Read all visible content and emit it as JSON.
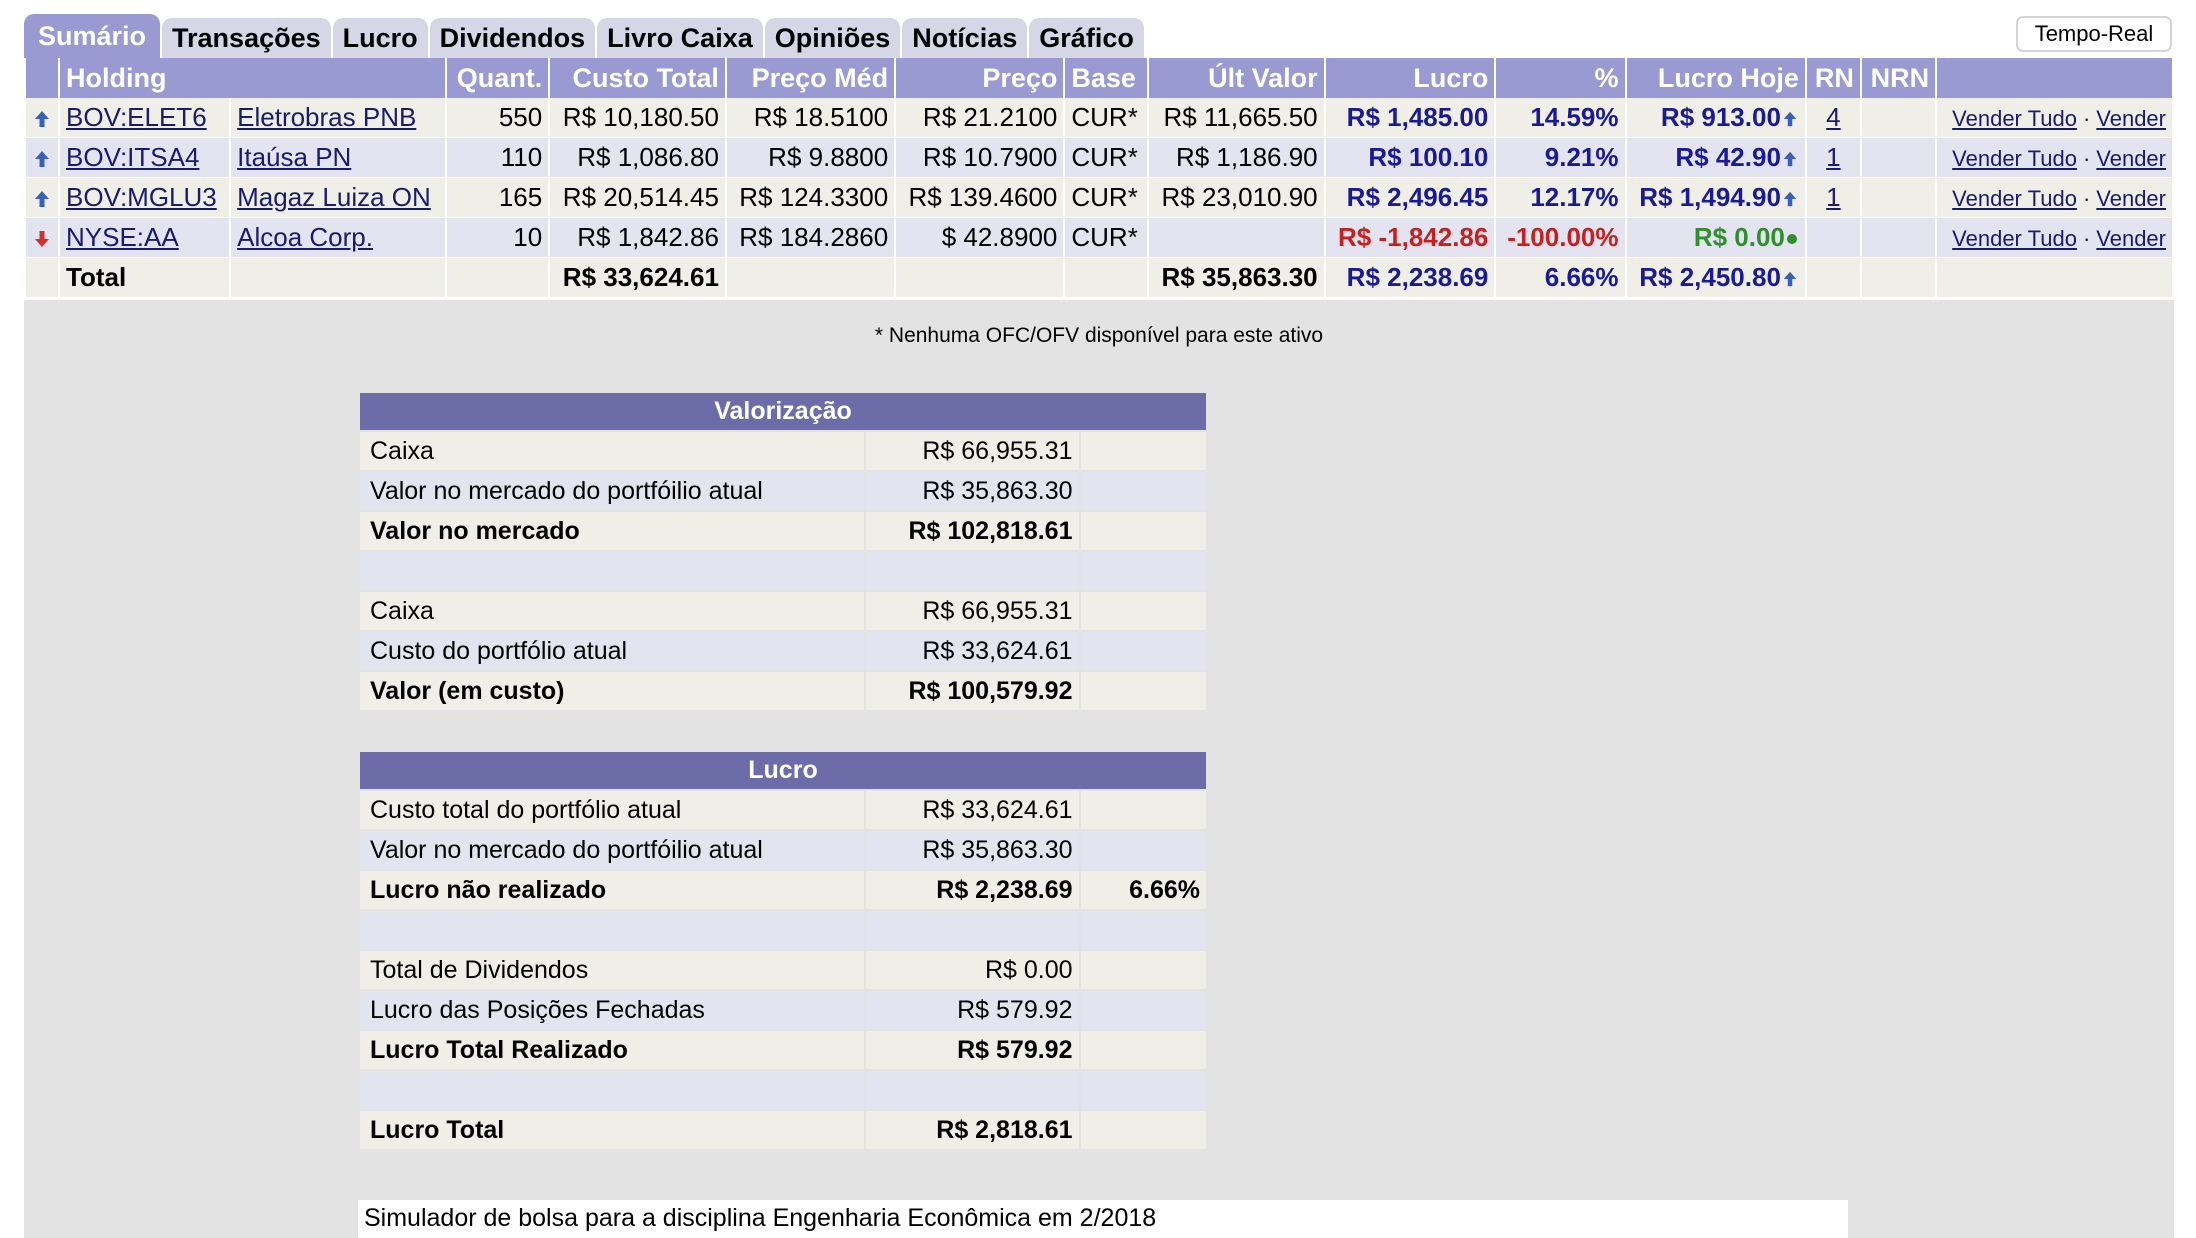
{
  "tabs": [
    "Sumário",
    "Transações",
    "Lucro",
    "Dividendos",
    "Livro Caixa",
    "Opiniões",
    "Notícias",
    "Gráfico"
  ],
  "realtime_button": "Tempo-Real",
  "holdings": {
    "headers": [
      "Holding",
      "Quant.",
      "Custo Total",
      "Preço Méd",
      "Preço",
      "Base",
      "Últ Valor",
      "Lucro",
      "%",
      "Lucro Hoje",
      "RN",
      "NRN"
    ],
    "rows": [
      {
        "direction": "up",
        "symbol": "BOV:ELET6",
        "name": "Eletrobras PNB",
        "qty": "550",
        "cost": "R$ 10,180.50",
        "avg": "R$ 18.5100",
        "price": "R$ 21.2100",
        "base": "CUR*",
        "last": "R$ 11,665.50",
        "profit": "R$ 1,485.00",
        "pct": "14.59%",
        "today": "R$ 913.00",
        "today_icon": "up-arrow-icon",
        "rn": "4",
        "nrn": "",
        "sell_all": "Vender Tudo",
        "sell": "Vender"
      },
      {
        "direction": "up",
        "symbol": "BOV:ITSA4",
        "name": "Itaúsa PN",
        "qty": "110",
        "cost": "R$ 1,086.80",
        "avg": "R$ 9.8800",
        "price": "R$ 10.7900",
        "base": "CUR*",
        "last": "R$ 1,186.90",
        "profit": "R$ 100.10",
        "pct": "9.21%",
        "today": "R$ 42.90",
        "today_icon": "up-arrow-icon",
        "rn": "1",
        "nrn": "",
        "sell_all": "Vender Tudo",
        "sell": "Vender"
      },
      {
        "direction": "up",
        "symbol": "BOV:MGLU3",
        "name": "Magaz Luiza ON",
        "qty": "165",
        "cost": "R$ 20,514.45",
        "avg": "R$ 124.3300",
        "price": "R$ 139.4600",
        "base": "CUR*",
        "last": "R$ 23,010.90",
        "profit": "R$ 2,496.45",
        "pct": "12.17%",
        "today": "R$ 1,494.90",
        "today_icon": "up-arrow-icon",
        "rn": "1",
        "nrn": "",
        "sell_all": "Vender Tudo",
        "sell": "Vender"
      },
      {
        "direction": "down",
        "symbol": "NYSE:AA",
        "name": "Alcoa Corp.",
        "qty": "10",
        "cost": "R$ 1,842.86",
        "avg": "R$ 184.2860",
        "price": "$ 42.8900",
        "base": "CUR*",
        "last": "",
        "profit": "R$ -1,842.86",
        "pct": "-100.00%",
        "today": "R$ 0.00",
        "today_icon": "green-dot-icon",
        "rn": "",
        "nrn": "",
        "sell_all": "Vender Tudo",
        "sell": "Vender"
      }
    ],
    "total": {
      "label": "Total",
      "cost": "R$ 33,624.61",
      "last": "R$ 35,863.30",
      "profit": "R$ 2,238.69",
      "pct": "6.66%",
      "today": "R$ 2,450.80"
    },
    "sep": "·"
  },
  "note": "* Nenhuma OFC/OFV disponível para este ativo",
  "valorizacao": {
    "title": "Valorização",
    "rows": [
      {
        "label": "Caixa",
        "value": "R$ 66,955.31",
        "pct": "",
        "bold": false
      },
      {
        "label": "Valor no mercado do portfóilio atual",
        "value": "R$ 35,863.30",
        "pct": "",
        "bold": false
      },
      {
        "label": "Valor no mercado",
        "value": "R$ 102,818.61",
        "pct": "",
        "bold": true
      },
      {
        "label": "",
        "value": "",
        "pct": "",
        "bold": false
      },
      {
        "label": "Caixa",
        "value": "R$ 66,955.31",
        "pct": "",
        "bold": false
      },
      {
        "label": "Custo do portfólio atual",
        "value": "R$ 33,624.61",
        "pct": "",
        "bold": false
      },
      {
        "label": "Valor (em custo)",
        "value": "R$ 100,579.92",
        "pct": "",
        "bold": true
      }
    ]
  },
  "lucro": {
    "title": "Lucro",
    "rows": [
      {
        "label": "Custo total do portfólio atual",
        "value": "R$ 33,624.61",
        "pct": "",
        "bold": false
      },
      {
        "label": "Valor no mercado do portfóilio atual",
        "value": "R$ 35,863.30",
        "pct": "",
        "bold": false
      },
      {
        "label": "Lucro não realizado",
        "value": "R$ 2,238.69",
        "pct": "6.66%",
        "bold": true
      },
      {
        "label": "",
        "value": "",
        "pct": "",
        "bold": false
      },
      {
        "label": "Total de Dividendos",
        "value": "R$ 0.00",
        "pct": "",
        "bold": false
      },
      {
        "label": "Lucro das Posições Fechadas",
        "value": "R$ 579.92",
        "pct": "",
        "bold": false
      },
      {
        "label": "Lucro Total Realizado",
        "value": "R$ 579.92",
        "pct": "",
        "bold": true
      },
      {
        "label": "",
        "value": "",
        "pct": "",
        "bold": false
      },
      {
        "label": "Lucro Total",
        "value": "R$ 2,818.61",
        "pct": "",
        "bold": true
      }
    ]
  },
  "footer": "Simulador de bolsa para a disciplina Engenharia Econômica em 2/2018",
  "colors": {
    "header": "#9a9ad2",
    "summary_header": "#6c6ca8",
    "positive": "#1a1a96",
    "negative": "#c62020",
    "zero": "#2f8f2f",
    "up_arrow": "#3a5fb8",
    "down_arrow": "#d03030"
  }
}
